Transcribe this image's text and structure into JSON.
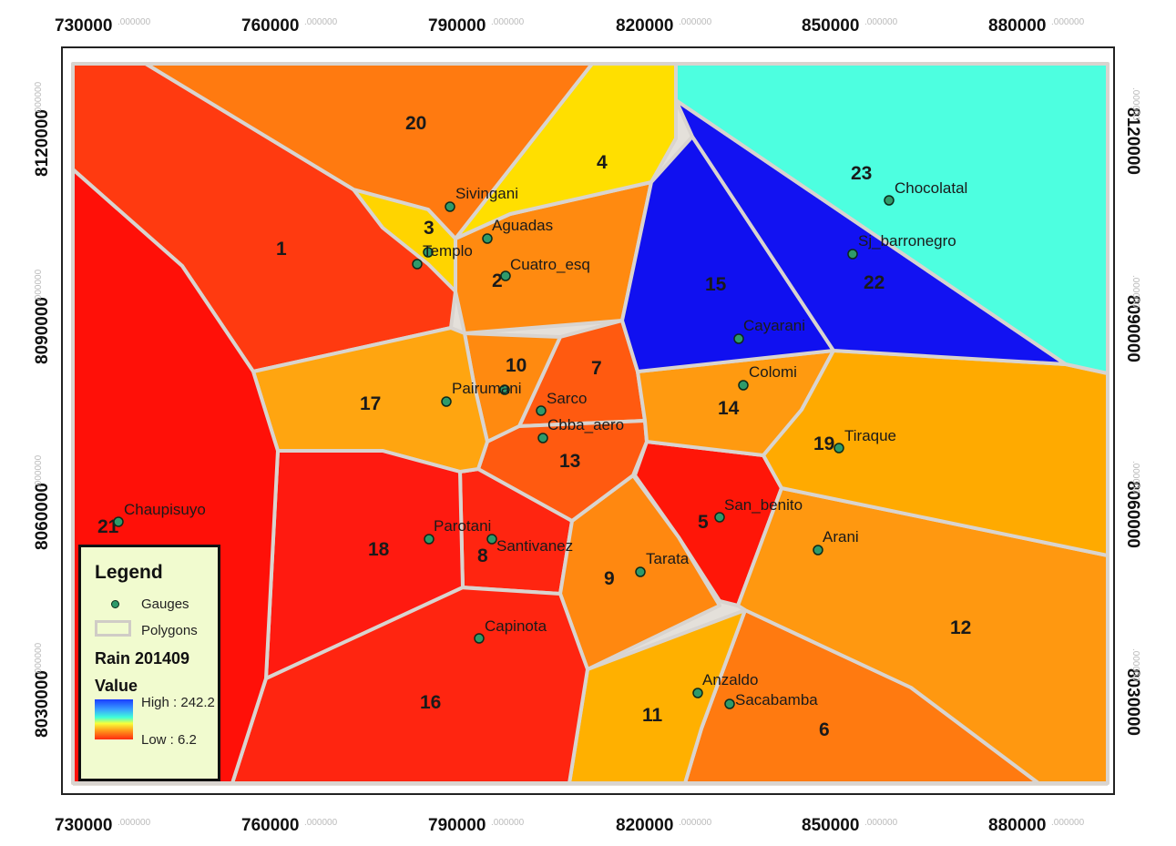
{
  "map": {
    "x_ticks": [
      "730000",
      "760000",
      "790000",
      "820000",
      "850000",
      "880000"
    ],
    "y_ticks": [
      "8120000",
      "8090000",
      "8060000",
      "8030000"
    ],
    "tick_suffix": ".000000"
  },
  "polygons": [
    {
      "id": "1",
      "color": "#ff3a10"
    },
    {
      "id": "2",
      "color": "#ff8a10"
    },
    {
      "id": "3",
      "color": "#ffd400"
    },
    {
      "id": "4",
      "color": "#ffdf00"
    },
    {
      "id": "5",
      "color": "#ff1608"
    },
    {
      "id": "6",
      "color": "#ff7a10"
    },
    {
      "id": "7",
      "color": "#ff5a10"
    },
    {
      "id": "8",
      "color": "#ff2510"
    },
    {
      "id": "9",
      "color": "#ff8810"
    },
    {
      "id": "10",
      "color": "#ff8a10"
    },
    {
      "id": "11",
      "color": "#ffb000"
    },
    {
      "id": "12",
      "color": "#ff9810"
    },
    {
      "id": "13",
      "color": "#ff5a10"
    },
    {
      "id": "14",
      "color": "#ff9a10"
    },
    {
      "id": "15",
      "color": "#1010f0"
    },
    {
      "id": "16",
      "color": "#ff2510"
    },
    {
      "id": "17",
      "color": "#ffa510"
    },
    {
      "id": "18",
      "color": "#ff1a10"
    },
    {
      "id": "19",
      "color": "#ffaa00"
    },
    {
      "id": "20",
      "color": "#ff7a10"
    },
    {
      "id": "21",
      "color": "#ff1008"
    },
    {
      "id": "22",
      "color": "#1212f2"
    },
    {
      "id": "23",
      "color": "#4dffe0"
    }
  ],
  "gauges": [
    "Sivingani",
    "Aguadas",
    "Templo",
    "Cuatro_esq",
    "Chocolatal",
    "Sj_barronegro",
    "Cayarani",
    "Colomi",
    "Pairumani",
    "Sarco",
    "Cbba_aero",
    "Tiraque",
    "San_benito",
    "Chaupisuyo",
    "Parotani",
    "Santivanez",
    "Tarata",
    "Arani",
    "Capinota",
    "Anzaldo",
    "Sacabamba"
  ],
  "legend": {
    "title": "Legend",
    "gauges_label": "Gauges",
    "polygons_label": "Polygons",
    "layer_title": "Rain 201409",
    "value_label": "Value",
    "high_label": "High : 242.2",
    "low_label": "Low : 6.2",
    "ramp_colors": [
      "#1a3cff",
      "#40ffd8",
      "#f8ff3a",
      "#ff2a10"
    ]
  }
}
